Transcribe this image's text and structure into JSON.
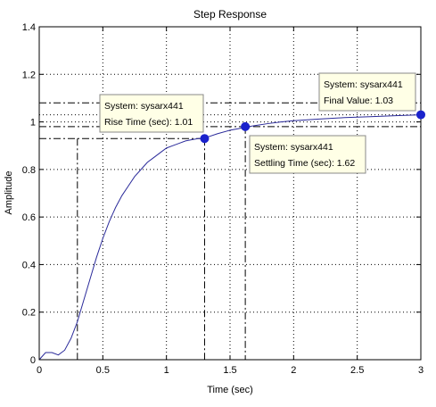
{
  "chart_data": {
    "type": "line",
    "title": "Step Response",
    "xlabel": "Time (sec)",
    "ylabel": "Amplitude",
    "xlim": [
      0,
      3
    ],
    "ylim": [
      0,
      1.4
    ],
    "xticks": [
      0,
      0.5,
      1,
      1.5,
      2,
      2.5,
      3
    ],
    "xtick_labels": [
      "0",
      "0.5",
      "1",
      "1.5",
      "2",
      "2.5",
      "3"
    ],
    "yticks": [
      0,
      0.2,
      0.4,
      0.6,
      0.8,
      1,
      1.2,
      1.4
    ],
    "ytick_labels": [
      "0",
      "0.2",
      "0.4",
      "0.6",
      "0.8",
      "1",
      "1.2",
      "1.4"
    ],
    "grid": true,
    "colors": {
      "line": "#2a2a9a",
      "marker": "#1a22cc",
      "datatip_bg": "#ffffe6"
    },
    "series": [
      {
        "x": [
          0,
          0.05,
          0.1,
          0.15,
          0.2,
          0.25,
          0.3,
          0.35,
          0.4,
          0.45,
          0.5,
          0.55,
          0.6,
          0.65,
          0.7,
          0.75,
          0.8,
          0.85,
          0.9,
          0.95,
          1.0,
          1.05,
          1.1,
          1.15,
          1.2,
          1.25,
          1.3,
          1.4,
          1.5,
          1.6,
          1.62,
          1.7,
          1.8,
          1.9,
          2.0,
          2.2,
          2.4,
          2.6,
          2.8,
          3.0
        ],
        "y": [
          0,
          0.03,
          0.03,
          0.02,
          0.04,
          0.09,
          0.16,
          0.25,
          0.34,
          0.43,
          0.51,
          0.58,
          0.64,
          0.69,
          0.73,
          0.77,
          0.8,
          0.83,
          0.85,
          0.87,
          0.89,
          0.9,
          0.91,
          0.92,
          0.925,
          0.93,
          0.932,
          0.95,
          0.965,
          0.975,
          0.978,
          0.985,
          0.993,
          1.0,
          1.005,
          1.012,
          1.018,
          1.022,
          1.026,
          1.03
        ]
      }
    ],
    "markers": [
      {
        "x": 1.3,
        "y": 0.93
      },
      {
        "x": 1.62,
        "y": 0.98
      },
      {
        "x": 3.0,
        "y": 1.03
      }
    ],
    "datatips": [
      {
        "line1": "System: sysarx441",
        "line2": "Rise Time (sec): 1.01"
      },
      {
        "line1": "System: sysarx441",
        "line2": "Settling Time (sec): 1.62"
      },
      {
        "line1": "System: sysarx441",
        "line2": "Final Value: 1.03"
      }
    ],
    "ref_lines_y": [
      0.93,
      0.98,
      1.08
    ],
    "ref_lines_x": [
      0.3,
      1.3,
      1.62
    ]
  }
}
